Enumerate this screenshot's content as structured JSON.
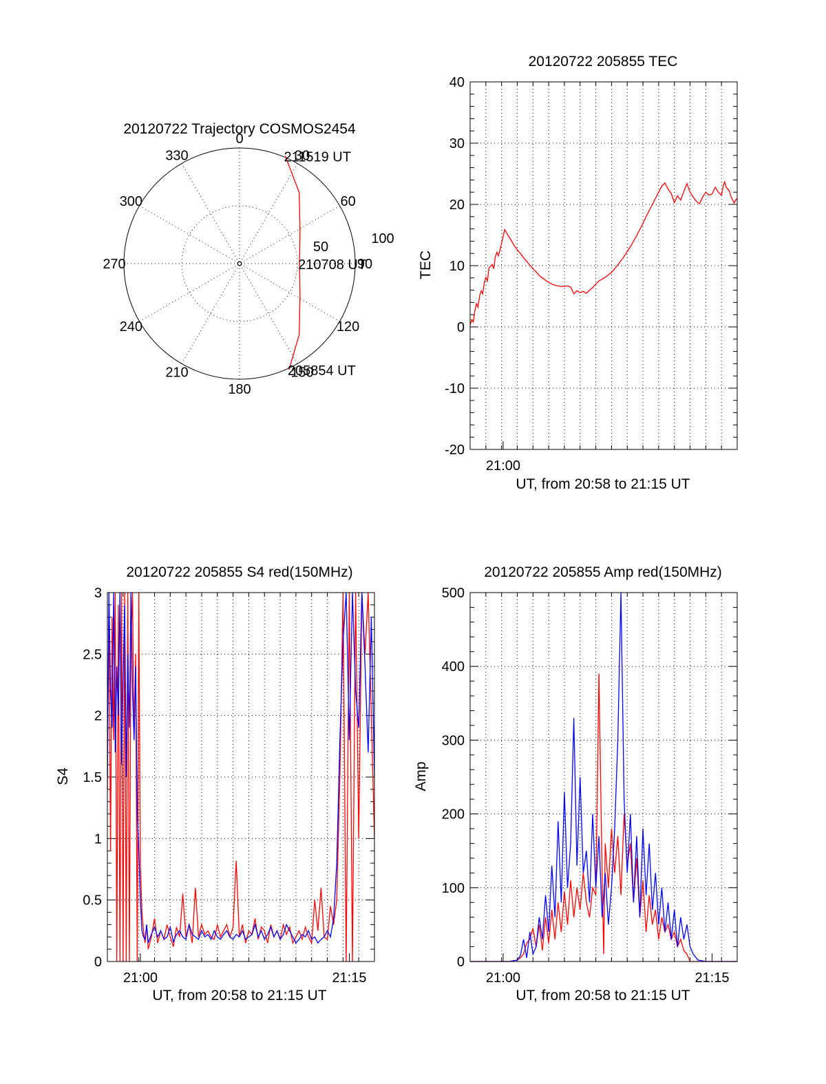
{
  "chart_data": [
    {
      "type": "polar",
      "title": "20120722 Trajectory COSMOS2454",
      "azimuth_labels": [
        "0",
        "30",
        "60",
        "90",
        "120",
        "150",
        "180",
        "210",
        "240",
        "270",
        "300",
        "330"
      ],
      "radial_labels": [
        "50",
        "100"
      ],
      "track_color": "#ff0000",
      "track": [
        {
          "az": 155,
          "el": 8
        },
        {
          "az": 140,
          "el": 25
        },
        {
          "az": 118,
          "el": 42
        },
        {
          "az": 90,
          "el": 48
        },
        {
          "az": 62,
          "el": 42
        },
        {
          "az": 40,
          "el": 25
        },
        {
          "az": 23,
          "el": 8
        }
      ],
      "annotations": [
        {
          "text": "211519 UT",
          "at": "end"
        },
        {
          "text": "210708 UT",
          "at": "middle"
        },
        {
          "text": "205854 UT",
          "at": "start"
        }
      ]
    },
    {
      "type": "line",
      "title": "20120722 205855 TEC",
      "ylabel": "TEC",
      "xlabel": "UT, from 20:58 to 21:15 UT",
      "x_ticks": [
        "21:00"
      ],
      "y_ticks": [
        "40",
        "30",
        "20",
        "10",
        "0",
        "-10",
        "-20"
      ],
      "ylim": [
        -20,
        40
      ],
      "series": [
        {
          "color": "#ff0000",
          "x": [
            0.0,
            0.1,
            0.2,
            0.3,
            0.4,
            0.5,
            0.6,
            0.7,
            0.8,
            0.9,
            1.0,
            1.1,
            1.2,
            1.4,
            1.5,
            1.6,
            1.7,
            1.8,
            1.9,
            2.0,
            2.2,
            2.4,
            2.6,
            2.8,
            3.0,
            3.2,
            3.4,
            3.6,
            3.8,
            4.0,
            4.2,
            4.4,
            4.6,
            4.8,
            5.0,
            5.2,
            5.4,
            5.6,
            5.8,
            6.0,
            6.2,
            6.4,
            6.6,
            6.8,
            7.0,
            7.2,
            7.4,
            7.6,
            7.8,
            8.0,
            8.2,
            8.4,
            8.6,
            8.8,
            9.0,
            9.2,
            9.4,
            9.6,
            9.8,
            10.0,
            10.2,
            10.4,
            10.6,
            10.8,
            11.0,
            11.2,
            11.4,
            11.6,
            11.8,
            12.0,
            12.2,
            12.4,
            12.6,
            12.8,
            13.0,
            13.2,
            13.4,
            13.6,
            13.8,
            14.0,
            14.2,
            14.4,
            14.6,
            14.8,
            15.0,
            15.2,
            15.4,
            15.6,
            15.8,
            16.0,
            16.1,
            16.2,
            16.3,
            16.5,
            16.6,
            16.7,
            16.8,
            16.9,
            17.0
          ],
          "y": [
            0.3,
            1.2,
            0.8,
            2.6,
            3.8,
            3.2,
            5.0,
            5.9,
            5.4,
            7.2,
            8.1,
            7.5,
            9.6,
            10.2,
            9.5,
            11.4,
            12.2,
            11.6,
            12.6,
            13.6,
            15.9,
            15.0,
            14.2,
            13.3,
            12.6,
            12.0,
            11.3,
            10.7,
            10.1,
            9.5,
            9.0,
            8.4,
            8.0,
            7.6,
            7.3,
            7.0,
            6.8,
            6.7,
            6.6,
            6.6,
            6.7,
            6.5,
            5.4,
            5.9,
            5.6,
            5.8,
            5.5,
            6.0,
            6.4,
            7.0,
            7.5,
            7.8,
            8.1,
            8.5,
            8.9,
            9.5,
            10.1,
            10.8,
            11.5,
            12.3,
            13.1,
            14.0,
            14.9,
            15.9,
            16.9,
            18.0,
            19.0,
            20.0,
            21.0,
            22.0,
            23.0,
            23.5,
            22.5,
            21.8,
            20.3,
            21.4,
            20.7,
            22.1,
            23.4,
            22.0,
            21.2,
            20.5,
            20.1,
            21.2,
            22.0,
            21.5,
            21.7,
            22.8,
            22.0,
            21.5,
            22.9,
            23.7,
            22.8,
            22.2,
            21.3,
            20.8,
            20.2,
            20.7,
            21.0
          ]
        }
      ]
    },
    {
      "type": "line",
      "title": "20120722 205855 S4 red(150MHz)",
      "ylabel": "S4",
      "xlabel": "UT, from 20:58 to 21:15 UT",
      "x_ticks": [
        "21:00",
        "21:15"
      ],
      "y_ticks": [
        "3",
        "2.5",
        "2",
        "1.5",
        "1",
        "0.5",
        "0"
      ],
      "ylim": [
        0,
        3
      ],
      "series": [
        {
          "color": "#ff0000",
          "x": [
            0.0,
            0.1,
            0.2,
            0.3,
            0.4,
            0.5,
            0.6,
            0.7,
            0.8,
            0.9,
            1.0,
            1.1,
            1.2,
            1.3,
            1.4,
            1.5,
            1.6,
            1.7,
            1.8,
            1.9,
            2.0,
            2.1,
            2.2,
            2.3,
            2.4,
            2.5,
            2.6,
            2.8,
            3.0,
            3.2,
            3.4,
            3.6,
            3.8,
            4.0,
            4.2,
            4.4,
            4.6,
            4.8,
            5.0,
            5.2,
            5.4,
            5.6,
            5.8,
            6.0,
            6.2,
            6.4,
            6.6,
            6.8,
            7.0,
            7.2,
            7.4,
            7.6,
            7.8,
            8.0,
            8.2,
            8.4,
            8.6,
            8.8,
            9.0,
            9.2,
            9.4,
            9.6,
            9.8,
            10.0,
            10.2,
            10.4,
            10.6,
            10.8,
            11.0,
            11.2,
            11.4,
            11.6,
            11.8,
            12.0,
            12.2,
            12.4,
            12.6,
            12.8,
            13.0,
            13.2,
            13.4,
            13.6,
            13.8,
            14.0,
            14.2,
            14.4,
            14.6,
            14.8,
            15.0,
            15.2,
            15.4,
            15.6,
            15.8,
            16.0,
            16.2,
            16.4,
            16.6,
            16.8,
            17.0
          ],
          "y": [
            1.4,
            3.0,
            0.9,
            2.8,
            1.8,
            3.0,
            0.0,
            2.9,
            0.0,
            3.0,
            0.0,
            3.0,
            0.0,
            3.0,
            0.0,
            2.6,
            3.0,
            1.8,
            2.5,
            0.0,
            3.0,
            0.8,
            0.4,
            0.25,
            0.15,
            0.3,
            0.1,
            0.2,
            0.35,
            0.15,
            0.25,
            0.18,
            0.3,
            0.2,
            0.12,
            0.28,
            0.2,
            0.55,
            0.2,
            0.3,
            0.15,
            0.6,
            0.2,
            0.3,
            0.22,
            0.25,
            0.2,
            0.18,
            0.3,
            0.2,
            0.25,
            0.3,
            0.2,
            0.28,
            0.82,
            0.2,
            0.3,
            0.15,
            0.25,
            0.22,
            0.35,
            0.18,
            0.28,
            0.25,
            0.15,
            0.3,
            0.2,
            0.25,
            0.18,
            0.3,
            0.22,
            0.28,
            0.15,
            0.2,
            0.25,
            0.18,
            0.28,
            0.2,
            0.15,
            0.5,
            0.25,
            0.6,
            0.2,
            0.18,
            0.45,
            0.3,
            0.5,
            1.5,
            3.0,
            0.0,
            3.0,
            0.0,
            3.0,
            1.0,
            3.0,
            2.5,
            3.0,
            2.0,
            1.0
          ]
        },
        {
          "color": "#0000ff",
          "x": [
            0.0,
            0.1,
            0.2,
            0.3,
            0.4,
            0.5,
            0.6,
            0.7,
            0.8,
            0.9,
            1.0,
            1.1,
            1.2,
            1.3,
            1.4,
            1.5,
            1.6,
            1.7,
            1.8,
            1.9,
            2.0,
            2.1,
            2.2,
            2.3,
            2.4,
            2.5,
            2.6,
            2.8,
            3.0,
            3.2,
            3.4,
            3.6,
            3.8,
            4.0,
            4.2,
            4.4,
            4.6,
            4.8,
            5.0,
            5.2,
            5.4,
            5.6,
            5.8,
            6.0,
            6.2,
            6.4,
            6.6,
            6.8,
            7.0,
            7.2,
            7.4,
            7.6,
            7.8,
            8.0,
            8.2,
            8.4,
            8.6,
            8.8,
            9.0,
            9.2,
            9.4,
            9.6,
            9.8,
            10.0,
            10.2,
            10.4,
            10.6,
            10.8,
            11.0,
            11.2,
            11.4,
            11.6,
            11.8,
            12.0,
            12.2,
            12.4,
            12.6,
            12.8,
            13.0,
            13.2,
            13.4,
            13.6,
            13.8,
            14.0,
            14.2,
            14.4,
            14.6,
            14.8,
            15.0,
            15.2,
            15.4,
            15.6,
            15.8,
            16.0,
            16.2,
            16.4,
            16.6,
            16.8,
            17.0
          ],
          "y": [
            1.5,
            3.0,
            2.2,
            1.9,
            3.0,
            1.7,
            2.4,
            2.0,
            3.0,
            1.6,
            2.3,
            2.9,
            1.5,
            2.5,
            1.9,
            3.0,
            2.2,
            1.8,
            2.4,
            1.2,
            0.9,
            0.5,
            0.25,
            0.2,
            0.18,
            0.3,
            0.15,
            0.22,
            0.28,
            0.2,
            0.25,
            0.18,
            0.2,
            0.28,
            0.16,
            0.22,
            0.25,
            0.2,
            0.18,
            0.3,
            0.22,
            0.2,
            0.18,
            0.25,
            0.2,
            0.22,
            0.18,
            0.25,
            0.2,
            0.18,
            0.22,
            0.25,
            0.2,
            0.18,
            0.22,
            0.2,
            0.25,
            0.18,
            0.2,
            0.22,
            0.3,
            0.2,
            0.25,
            0.18,
            0.22,
            0.28,
            0.2,
            0.25,
            0.18,
            0.22,
            0.3,
            0.25,
            0.2,
            0.15,
            0.18,
            0.22,
            0.2,
            0.25,
            0.18,
            0.2,
            0.15,
            0.18,
            0.2,
            0.25,
            0.2,
            0.35,
            0.8,
            1.8,
            2.6,
            3.0,
            1.8,
            3.0,
            2.2,
            1.9,
            3.0,
            2.4,
            1.7,
            2.8,
            1.5
          ]
        }
      ]
    },
    {
      "type": "line",
      "title": "20120722 205855 Amp red(150MHz)",
      "ylabel": "Amp",
      "xlabel": "UT, from 20:58 to 21:15 UT",
      "x_ticks": [
        "21:00",
        "21:15"
      ],
      "y_ticks": [
        "500",
        "400",
        "300",
        "200",
        "100",
        "0"
      ],
      "ylim": [
        0,
        500
      ],
      "series": [
        {
          "color": "#ff0000",
          "x": [
            0.0,
            0.5,
            1.0,
            1.5,
            2.0,
            2.5,
            3.0,
            3.2,
            3.4,
            3.6,
            3.8,
            4.0,
            4.2,
            4.4,
            4.6,
            4.8,
            5.0,
            5.2,
            5.4,
            5.6,
            5.8,
            6.0,
            6.2,
            6.4,
            6.6,
            6.8,
            7.0,
            7.2,
            7.4,
            7.6,
            7.8,
            8.0,
            8.2,
            8.4,
            8.5,
            8.6,
            8.8,
            9.0,
            9.2,
            9.4,
            9.6,
            9.8,
            10.0,
            10.2,
            10.4,
            10.6,
            10.8,
            11.0,
            11.2,
            11.4,
            11.6,
            11.8,
            12.0,
            12.2,
            12.4,
            12.6,
            12.8,
            13.0,
            13.2,
            13.4,
            13.6,
            13.8,
            14.0,
            14.5,
            15.0,
            15.5,
            16.0,
            16.5,
            17.0
          ],
          "y": [
            0,
            0,
            0,
            0,
            0,
            0,
            2,
            5,
            10,
            25,
            30,
            45,
            20,
            50,
            15,
            60,
            25,
            70,
            30,
            80,
            40,
            95,
            50,
            110,
            60,
            100,
            70,
            120,
            80,
            60,
            100,
            90,
            390,
            120,
            10,
            160,
            100,
            180,
            120,
            170,
            90,
            200,
            130,
            160,
            80,
            140,
            60,
            110,
            40,
            90,
            50,
            70,
            30,
            60,
            40,
            50,
            30,
            40,
            20,
            30,
            15,
            10,
            0,
            0,
            0,
            0,
            0,
            0,
            0
          ]
        },
        {
          "color": "#0000ff",
          "x": [
            0.0,
            0.5,
            1.0,
            1.5,
            2.0,
            2.5,
            3.0,
            3.2,
            3.4,
            3.6,
            3.8,
            4.0,
            4.2,
            4.4,
            4.6,
            4.8,
            5.0,
            5.2,
            5.4,
            5.6,
            5.8,
            6.0,
            6.2,
            6.4,
            6.6,
            6.8,
            7.0,
            7.2,
            7.4,
            7.6,
            7.8,
            8.0,
            8.2,
            8.4,
            8.6,
            8.8,
            9.0,
            9.2,
            9.4,
            9.6,
            9.8,
            10.0,
            10.2,
            10.4,
            10.6,
            10.8,
            11.0,
            11.2,
            11.4,
            11.6,
            11.8,
            12.0,
            12.2,
            12.4,
            12.6,
            12.8,
            13.0,
            13.2,
            13.4,
            13.6,
            13.8,
            14.0,
            14.2,
            14.5,
            15.0,
            15.5,
            16.0,
            16.5,
            17.0
          ],
          "y": [
            0,
            0,
            0,
            0,
            0,
            0,
            2,
            8,
            30,
            5,
            40,
            10,
            20,
            60,
            30,
            90,
            40,
            130,
            60,
            190,
            80,
            230,
            100,
            160,
            330,
            130,
            250,
            120,
            150,
            80,
            200,
            100,
            170,
            60,
            120,
            50,
            100,
            180,
            300,
            500,
            220,
            120,
            200,
            80,
            170,
            60,
            180,
            90,
            160,
            70,
            120,
            50,
            100,
            40,
            80,
            30,
            70,
            20,
            60,
            30,
            50,
            20,
            10,
            2,
            0,
            0,
            0,
            0,
            0
          ]
        }
      ]
    }
  ]
}
